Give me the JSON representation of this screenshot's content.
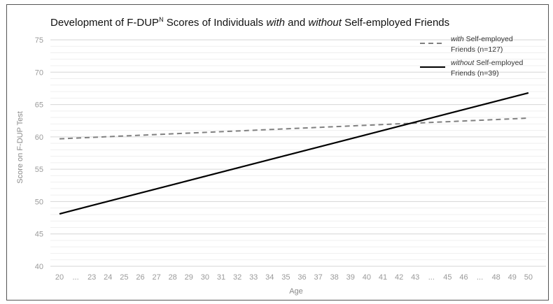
{
  "chart_data": {
    "type": "line",
    "title": {
      "prefix": "Development of F-DUP",
      "superscript": "N",
      "middle1": " Scores of Individuals ",
      "italic1": "with",
      "middle2": " and ",
      "italic2": "without",
      "suffix": " Self-employed Friends"
    },
    "xlabel": "Age",
    "ylabel": "Score on F-DUP Test",
    "ylim": [
      40,
      75
    ],
    "yticks": [
      40,
      45,
      50,
      55,
      60,
      65,
      70,
      75
    ],
    "grid": true,
    "legend_position": "top-right",
    "categories": [
      "20",
      "...",
      "23",
      "24",
      "25",
      "26",
      "27",
      "28",
      "29",
      "30",
      "31",
      "32",
      "33",
      "34",
      "35",
      "36",
      "37",
      "38",
      "39",
      "40",
      "41",
      "42",
      "43",
      "...",
      "45",
      "46",
      "...",
      "48",
      "49",
      "50"
    ],
    "series": [
      {
        "name_italic": "with",
        "name_rest": " Self-employed",
        "name_line2": "Friends (n=127)",
        "style": "dashed",
        "color": "#808080",
        "x": [
          20,
          50
        ],
        "values": [
          59.7,
          62.9
        ]
      },
      {
        "name_italic": "without",
        "name_rest": " Self-employed",
        "name_line2": "Friends (n=39)",
        "style": "solid",
        "color": "#000000",
        "x": [
          20,
          50
        ],
        "values": [
          48.1,
          66.8
        ]
      }
    ]
  }
}
